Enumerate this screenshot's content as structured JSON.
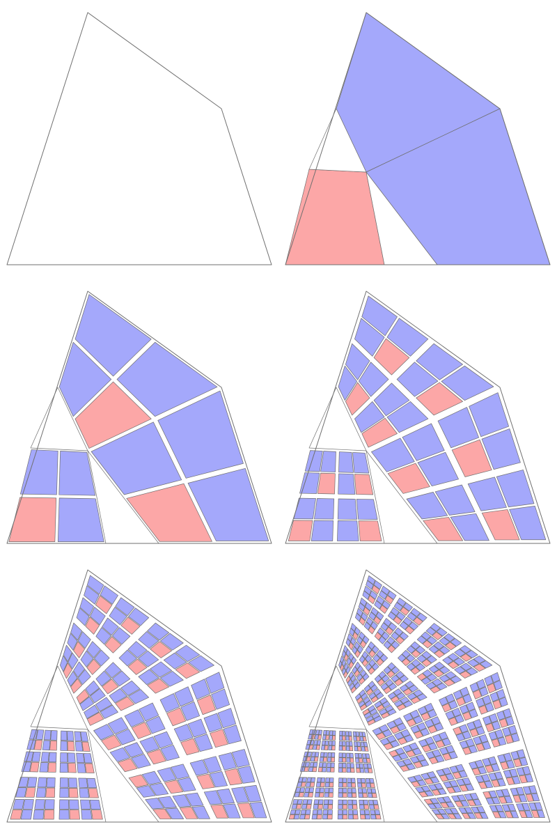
{
  "figure": {
    "colors": {
      "background": "#ffffff",
      "outline": "#6f6f6f",
      "blue_tile": "#a4a8fb",
      "red_tile": "#fca7a7",
      "gap": "#ffffff"
    },
    "panels": [
      {
        "name": "generation-0",
        "depth": 0
      },
      {
        "name": "generation-1",
        "depth": 1
      },
      {
        "name": "generation-2",
        "depth": 2
      },
      {
        "name": "generation-3",
        "depth": 3
      },
      {
        "name": "generation-4",
        "depth": 4
      },
      {
        "name": "generation-5",
        "depth": 5
      }
    ]
  }
}
